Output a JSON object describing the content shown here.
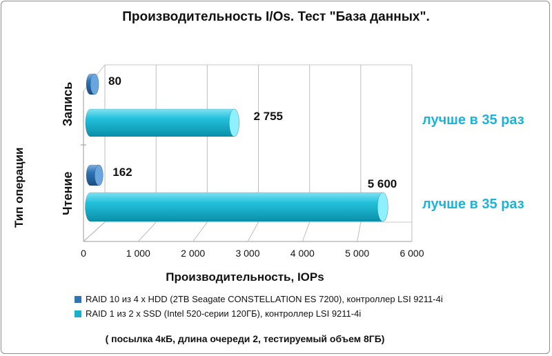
{
  "chart_data": {
    "type": "bar",
    "orientation": "horizontal",
    "title": "Производительность  I/Os. Тест \"База данных\".",
    "xlabel": "Производительность,  IOPs",
    "ylabel": "Тип операции",
    "categories": [
      "Запись",
      "Чтение"
    ],
    "x_ticks": [
      "0",
      "1 000",
      "2 000",
      "3 000",
      "4 000",
      "5 000",
      "6 000"
    ],
    "xlim": [
      0,
      6000
    ],
    "series": [
      {
        "name": "RAID 10 из 4 x HDD (2TB Seagate CONSTELLATION ES 7200), контроллер LSI 9211-4i",
        "values": [
          80,
          162
        ],
        "labels": [
          "80",
          "162"
        ],
        "color": "#2e75b6"
      },
      {
        "name": "RAID 1 из 2 x SSD (Intel 520-серии 120ГБ), контроллер LSI 9211-4i",
        "values": [
          2755,
          5600
        ],
        "labels": [
          "2 755",
          "5 600"
        ],
        "color": "#17b1cc"
      }
    ],
    "annotations": [
      "лучше в 35 раз",
      "лучше в 35 раз"
    ],
    "footnote": "( посылка 4кБ, длина очереди 2, тестируемый объем  8ГБ)",
    "legend_placement": "bottom",
    "grid": true
  }
}
